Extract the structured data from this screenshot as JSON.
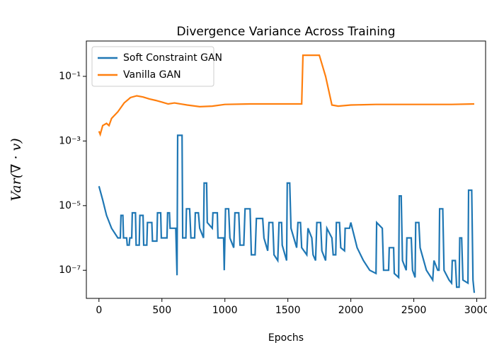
{
  "chart_data": {
    "type": "line",
    "title": "Divergence Variance Across Training",
    "xlabel": "Epochs",
    "ylabel": "Var(∇ · v)",
    "yscale": "log",
    "legend": "upper left",
    "xlim": [
      -100,
      3070
    ],
    "xticks": [
      0,
      500,
      1000,
      1500,
      2000,
      2500,
      3000
    ],
    "ylim": [
      1.35e-08,
      1.24
    ],
    "yticks": [
      {
        "value": 0.1,
        "label": "10⁻¹"
      },
      {
        "value": 0.001,
        "label": "10⁻³"
      },
      {
        "value": 1e-05,
        "label": "10⁻⁵"
      },
      {
        "value": 1e-07,
        "label": "10⁻⁷"
      }
    ],
    "series": [
      {
        "name": "Soft Constraint GAN",
        "color": "#1f77b4",
        "x": [
          0,
          30,
          60,
          100,
          150,
          170,
          175,
          190,
          195,
          220,
          225,
          240,
          245,
          260,
          265,
          290,
          295,
          320,
          325,
          350,
          355,
          380,
          385,
          420,
          425,
          460,
          465,
          490,
          495,
          540,
          545,
          560,
          565,
          610,
          620,
          625,
          660,
          665,
          690,
          695,
          720,
          730,
          760,
          765,
          790,
          800,
          830,
          835,
          855,
          860,
          900,
          905,
          940,
          945,
          990,
          995,
          1005,
          1030,
          1040,
          1070,
          1080,
          1110,
          1120,
          1150,
          1160,
          1200,
          1210,
          1240,
          1250,
          1300,
          1310,
          1340,
          1350,
          1380,
          1390,
          1420,
          1430,
          1450,
          1455,
          1490,
          1495,
          1515,
          1525,
          1570,
          1580,
          1600,
          1610,
          1650,
          1660,
          1690,
          1700,
          1720,
          1730,
          1760,
          1770,
          1800,
          1810,
          1850,
          1860,
          1880,
          1885,
          1910,
          1920,
          1950,
          1955,
          1990,
          2000,
          2050,
          2100,
          2150,
          2200,
          2205,
          2250,
          2260,
          2300,
          2305,
          2340,
          2345,
          2380,
          2385,
          2400,
          2410,
          2440,
          2445,
          2480,
          2490,
          2510,
          2515,
          2540,
          2550,
          2600,
          2650,
          2660,
          2690,
          2700,
          2705,
          2730,
          2740,
          2780,
          2800,
          2805,
          2830,
          2840,
          2860,
          2865,
          2880,
          2890,
          2930,
          2935,
          2960,
          2970,
          2980
        ],
        "values": [
          4e-05,
          1.5e-05,
          5e-06,
          2e-06,
          1e-06,
          1e-06,
          5e-06,
          5e-06,
          1e-06,
          1e-06,
          6e-07,
          6e-07,
          1e-06,
          1e-06,
          6e-06,
          6e-06,
          6e-07,
          6e-07,
          5e-06,
          5e-06,
          6e-07,
          6e-07,
          3e-06,
          3e-06,
          8e-07,
          8e-07,
          6e-06,
          6e-06,
          1e-06,
          1e-06,
          6e-06,
          6e-06,
          2e-06,
          2e-06,
          7e-08,
          0.0015,
          0.0015,
          1e-06,
          1e-06,
          8e-06,
          8e-06,
          1e-06,
          1e-06,
          6e-06,
          6e-06,
          2e-06,
          1e-06,
          5e-05,
          5e-05,
          3e-06,
          2e-06,
          6e-06,
          6e-06,
          1e-06,
          1e-06,
          1e-07,
          8e-06,
          8e-06,
          1e-06,
          5e-07,
          6e-06,
          6e-06,
          6e-07,
          6e-07,
          8e-06,
          8e-06,
          3e-07,
          3e-07,
          4e-06,
          4e-06,
          1e-06,
          4e-07,
          3e-06,
          3e-06,
          3e-07,
          2e-07,
          3e-06,
          3e-06,
          6e-07,
          2e-07,
          5e-05,
          5e-05,
          2e-06,
          5e-07,
          3e-06,
          3e-06,
          5e-07,
          3e-07,
          2e-06,
          1e-06,
          3e-07,
          2e-07,
          3e-06,
          3e-06,
          4e-07,
          2e-07,
          2e-06,
          1e-06,
          3e-07,
          3e-07,
          3e-06,
          3e-06,
          5e-07,
          4e-07,
          2e-06,
          2e-06,
          3e-06,
          5e-07,
          2e-07,
          1e-07,
          8e-08,
          3e-06,
          2e-06,
          1e-07,
          1e-07,
          5e-07,
          5e-07,
          8e-08,
          6e-08,
          2e-05,
          2e-05,
          2e-07,
          1e-07,
          1e-06,
          1e-06,
          1e-07,
          6e-08,
          3e-06,
          3e-06,
          5e-07,
          1e-07,
          5e-08,
          2e-07,
          1e-07,
          1e-07,
          8e-06,
          8e-06,
          1e-07,
          5e-08,
          4e-08,
          2e-07,
          2e-07,
          3e-08,
          3e-08,
          1e-06,
          1e-06,
          5e-08,
          4e-08,
          3e-05,
          3e-05,
          5e-08,
          2e-08
        ]
      },
      {
        "name": "Vanilla GAN",
        "color": "#ff7f0e",
        "x": [
          0,
          10,
          30,
          60,
          80,
          100,
          150,
          200,
          250,
          300,
          350,
          400,
          450,
          500,
          550,
          600,
          700,
          800,
          900,
          1000,
          1200,
          1400,
          1610,
          1620,
          1750,
          1800,
          1850,
          1900,
          2000,
          2200,
          2500,
          2800,
          2980
        ],
        "values": [
          0.002,
          0.0016,
          0.003,
          0.0035,
          0.003,
          0.005,
          0.008,
          0.015,
          0.022,
          0.025,
          0.023,
          0.02,
          0.018,
          0.016,
          0.014,
          0.015,
          0.013,
          0.0115,
          0.012,
          0.0135,
          0.014,
          0.014,
          0.014,
          0.45,
          0.45,
          0.1,
          0.013,
          0.012,
          0.013,
          0.0135,
          0.0135,
          0.0135,
          0.014
        ]
      }
    ]
  }
}
